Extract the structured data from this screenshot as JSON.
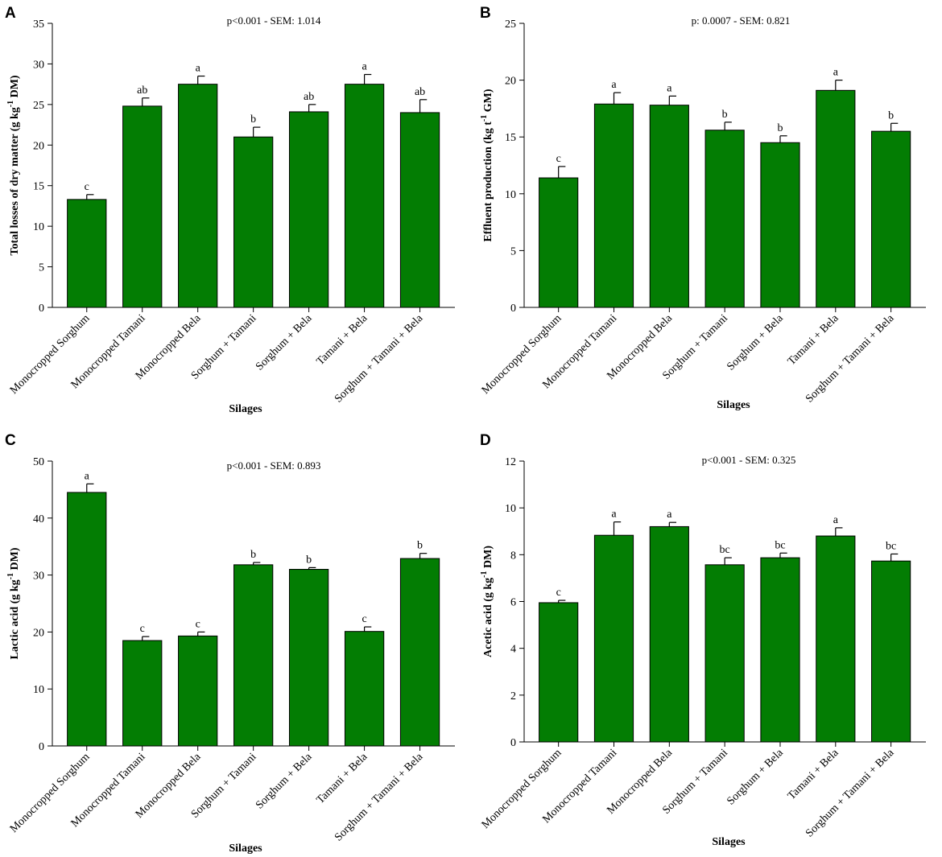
{
  "colors": {
    "bar_fill": "#037d03",
    "axis": "#000000"
  },
  "chart_data": [
    {
      "panel": "A",
      "type": "bar",
      "categories": [
        "Monocropped Sorghum",
        "Monocropped Tamani",
        "Monocropped Bela",
        "Sorghum + Tamani",
        "Sorghum + Bela",
        "Tamani + Bela",
        "Sorghum + Tamani + Bela"
      ],
      "values": [
        13.3,
        24.8,
        27.5,
        21.0,
        24.1,
        27.5,
        24.0
      ],
      "errors": [
        0.6,
        1.0,
        1.0,
        1.2,
        0.9,
        1.2,
        1.6
      ],
      "letters": [
        "c",
        "ab",
        "a",
        "b",
        "ab",
        "a",
        "ab"
      ],
      "annotation": "p<0.001 - SEM: 1.014",
      "xlabel": "Silages",
      "ylabel_main": "Total losses of dry matter (g kg",
      "ylabel_sup": "-1",
      "ylabel_tail": " DM)",
      "ylim": [
        0,
        35
      ],
      "yticks": [
        0,
        5,
        10,
        15,
        20,
        25,
        30,
        35
      ]
    },
    {
      "panel": "B",
      "type": "bar",
      "categories": [
        "Monocropped Sorghum",
        "Monocropped Tamani",
        "Monocropped Bela",
        "Sorghum + Tamani",
        "Sorghum + Bela",
        "Tamani + Bela",
        "Sorghum + Tamani + Bela"
      ],
      "values": [
        11.4,
        17.9,
        17.8,
        15.6,
        14.5,
        19.1,
        15.5
      ],
      "errors": [
        1.0,
        1.0,
        0.8,
        0.7,
        0.6,
        0.9,
        0.7
      ],
      "letters": [
        "c",
        "a",
        "a",
        "b",
        "b",
        "a",
        "b"
      ],
      "annotation": "p: 0.0007 - SEM: 0.821",
      "xlabel": "Silages",
      "ylabel_main": "Effluent production  (kg t",
      "ylabel_sup": "-1",
      "ylabel_tail": " GM)",
      "ylim": [
        0,
        25
      ],
      "yticks": [
        0,
        5,
        10,
        15,
        20,
        25
      ]
    },
    {
      "panel": "C",
      "type": "bar",
      "categories": [
        "Monocropped Sorghum",
        "Monocropped Tamani",
        "Monocropped Bela",
        "Sorghum + Tamani",
        "Sorghum + Bela",
        "Tamani + Bela",
        "Sorghum + Tamani + Bela"
      ],
      "values": [
        44.5,
        18.5,
        19.3,
        31.8,
        31.0,
        20.1,
        32.9
      ],
      "errors": [
        1.5,
        0.7,
        0.7,
        0.4,
        0.3,
        0.8,
        0.9
      ],
      "letters": [
        "a",
        "c",
        "c",
        "b",
        "b",
        "c",
        "b"
      ],
      "annotation": "p<0.001 - SEM: 0.893",
      "xlabel": "Silages",
      "ylabel_main": "Lactic acid  (g kg",
      "ylabel_sup": "-1",
      "ylabel_tail": " DM)",
      "ylim": [
        0,
        50
      ],
      "yticks": [
        0,
        10,
        20,
        30,
        40,
        50
      ]
    },
    {
      "panel": "D",
      "type": "bar",
      "categories": [
        "Monocropped Sorghum",
        "Monocropped Tamani",
        "Monocropped Bela",
        "Sorghum + Tamani",
        "Sorghum + Bela",
        "Tamani + Bela",
        "Sorghum + Tamani + Bela"
      ],
      "values": [
        5.95,
        8.83,
        9.2,
        7.57,
        7.87,
        8.8,
        7.73
      ],
      "errors": [
        0.1,
        0.57,
        0.18,
        0.3,
        0.2,
        0.35,
        0.3
      ],
      "letters": [
        "c",
        "a",
        "a",
        "bc",
        "bc",
        "a",
        "bc"
      ],
      "annotation": "p<0.001 - SEM: 0.325",
      "xlabel": "Silages",
      "ylabel_main": "Acetic acid  (g kg",
      "ylabel_sup": "-1",
      "ylabel_tail": " DM)",
      "ylim": [
        0,
        12
      ],
      "yticks": [
        0,
        2,
        4,
        6,
        8,
        10,
        12
      ]
    }
  ]
}
